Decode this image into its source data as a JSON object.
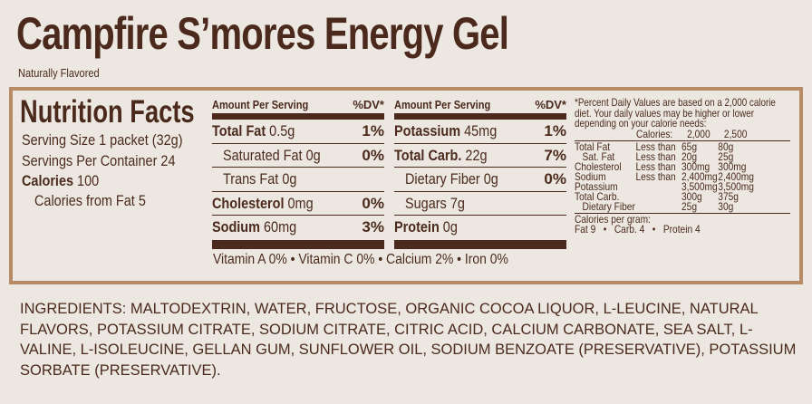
{
  "title": "Campfire S’mores Energy Gel",
  "subtitle": "Naturally Flavored",
  "nutrition": {
    "heading": "Nutrition Facts",
    "serving_size": "Serving Size 1 packet (32g)",
    "servings_per_container": "Servings Per Container 24",
    "calories_label": "Calories",
    "calories_value": "100",
    "calories_from_fat": "Calories from Fat  5",
    "amount_header": "Amount Per Serving",
    "dv_header": "%DV*",
    "left_rows": [
      {
        "name": "Total Fat",
        "amount": "0.5g",
        "dv": "1%"
      },
      {
        "name": "Saturated Fat",
        "amount": "0g",
        "dv": "0%"
      },
      {
        "name": "Trans Fat",
        "amount": "0g",
        "dv": ""
      },
      {
        "name": "Cholesterol",
        "amount": "0mg",
        "dv": "0%"
      },
      {
        "name": "Sodium",
        "amount": "60mg",
        "dv": "3%"
      }
    ],
    "right_rows": [
      {
        "name": "Potassium",
        "amount": "45mg",
        "dv": "1%"
      },
      {
        "name": "Total Carb.",
        "amount": "22g",
        "dv": "7%"
      },
      {
        "name": "Dietary Fiber",
        "amount": "0g",
        "dv": "0%"
      },
      {
        "name": "Sugars",
        "amount": "7g",
        "dv": ""
      },
      {
        "name": "Protein",
        "amount": "0g",
        "dv": ""
      }
    ],
    "vitamins": "Vitamin A 0% • Vitamin C 0% • Calcium 2% • Iron 0%",
    "footnote": "*Percent Daily Values are based on a 2,000 calorie diet. Your daily values may be higher or lower depending on your calorie needs:",
    "dv_table": {
      "header": [
        "Calories:",
        "2,000",
        "2,500"
      ],
      "rows": [
        [
          "Total Fat",
          "Less than",
          "65g",
          "80g"
        ],
        [
          "Sat. Fat",
          "Less than",
          "20g",
          "25g"
        ],
        [
          "Cholesterol",
          "Less than",
          "300mg",
          "300mg"
        ],
        [
          "Sodium",
          "Less than",
          "2,400mg",
          "2,400mg"
        ],
        [
          "Potassium",
          "",
          "3,500mg",
          "3,500mg"
        ],
        [
          "Total Carb.",
          "",
          "300g",
          "375g"
        ],
        [
          "Dietary Fiber",
          "",
          "25g",
          "30g"
        ]
      ]
    },
    "calories_per_gram_label": "Calories per gram:",
    "calories_per_gram": "Fat 9   •   Carb. 4   •   Protein 4"
  },
  "ingredients": "INGREDIENTS: MALTODEXTRIN, WATER, FRUCTOSE, ORGANIC COCOA LIQUOR, L-LEUCINE, NATURAL FLAVORS, POTASSIUM CITRATE, SODIUM CITRATE, CITRIC ACID, CALCIUM CARBONATE, SEA SALT, L-VALINE, L-ISOLEUCINE, GELLAN GUM, SUNFLOWER OIL, SODIUM BENZOATE (PRESERVATIVE), POTASSIUM SORBATE (PRESERVATIVE).",
  "colors": {
    "text": "#4b2a1d",
    "border": "#b98a66",
    "background": "#ece8e1"
  }
}
